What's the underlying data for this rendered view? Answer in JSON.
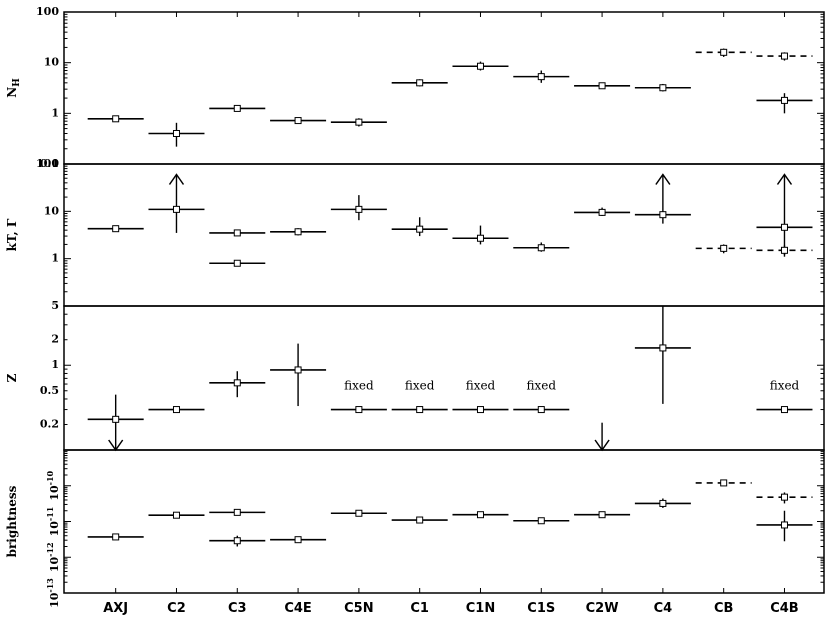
{
  "chart_data": {
    "type": "scatter",
    "categories": [
      "AXJ",
      "C2",
      "C3",
      "C4E",
      "C5N",
      "C1",
      "C1N",
      "C1S",
      "C2W",
      "C4",
      "CB",
      "C4B"
    ],
    "panels": [
      {
        "id": "nh",
        "ylabel": "N_H",
        "ylabel_main": "N",
        "ylabel_sub": "H",
        "scale": "log",
        "ylim": [
          0.1,
          100
        ],
        "ticks": [
          {
            "v": 0.1,
            "label": "0.1"
          },
          {
            "v": 1,
            "label": "1"
          },
          {
            "v": 10,
            "label": "10"
          },
          {
            "v": 100,
            "label": "100"
          }
        ],
        "series": [
          {
            "style": "solid",
            "points": [
              {
                "cat": "AXJ",
                "y": 0.78,
                "lo": 0.72,
                "hi": 0.85
              },
              {
                "cat": "C2",
                "y": 0.4,
                "lo": 0.22,
                "hi": 0.65
              },
              {
                "cat": "C3",
                "y": 1.25,
                "lo": 1.1,
                "hi": 1.4
              },
              {
                "cat": "C4E",
                "y": 0.72,
                "lo": 0.64,
                "hi": 0.8
              },
              {
                "cat": "C5N",
                "y": 0.67,
                "lo": 0.55,
                "hi": 0.8
              },
              {
                "cat": "C1",
                "y": 4.0,
                "lo": 3.4,
                "hi": 4.7
              },
              {
                "cat": "C1N",
                "y": 8.5,
                "lo": 7.0,
                "hi": 10.5
              },
              {
                "cat": "C1S",
                "y": 5.3,
                "lo": 4.0,
                "hi": 7.0
              },
              {
                "cat": "C2W",
                "y": 3.5,
                "lo": 3.1,
                "hi": 3.9
              },
              {
                "cat": "C4",
                "y": 3.2,
                "lo": 2.7,
                "hi": 3.8
              },
              {
                "cat": "C4B",
                "y": 1.8,
                "lo": 1.0,
                "hi": 2.5
              }
            ]
          },
          {
            "style": "dashed",
            "points": [
              {
                "cat": "CB",
                "y": 16,
                "lo": 13,
                "hi": 19
              },
              {
                "cat": "C4B",
                "y": 13.5,
                "lo": 11,
                "hi": 16
              }
            ]
          }
        ]
      },
      {
        "id": "kt",
        "ylabel": "kT, Γ",
        "scale": "log",
        "ylim": [
          0.1,
          100
        ],
        "ticks": [
          {
            "v": 1,
            "label": "1"
          },
          {
            "v": 10,
            "label": "10"
          },
          {
            "v": 100,
            "label": "100"
          }
        ],
        "series": [
          {
            "style": "solid",
            "points": [
              {
                "cat": "AXJ",
                "y": 4.3,
                "lo": 3.9,
                "hi": 4.8
              },
              {
                "cat": "C2",
                "y": 11,
                "lo": 3.5,
                "hi": 60,
                "arrow": "up"
              },
              {
                "cat": "C3",
                "y": 3.5,
                "lo": 3.2,
                "hi": 3.8
              },
              {
                "cat": "C3",
                "y": 0.8,
                "lo": 0.74,
                "hi": 0.86
              },
              {
                "cat": "C4E",
                "y": 3.7,
                "lo": 3.1,
                "hi": 4.4
              },
              {
                "cat": "C5N",
                "y": 11,
                "lo": 6.5,
                "hi": 22
              },
              {
                "cat": "C1",
                "y": 4.2,
                "lo": 3.0,
                "hi": 7.5
              },
              {
                "cat": "C1N",
                "y": 2.7,
                "lo": 2.0,
                "hi": 5.0
              },
              {
                "cat": "C1S",
                "y": 1.7,
                "lo": 1.4,
                "hi": 2.2
              },
              {
                "cat": "C2W",
                "y": 9.5,
                "lo": 8.0,
                "hi": 12
              },
              {
                "cat": "C4",
                "y": 8.5,
                "lo": 5.5,
                "hi": 60,
                "arrow": "up"
              },
              {
                "cat": "C4B",
                "y": 4.6,
                "lo": 1.1,
                "hi": 60,
                "arrow": "up"
              }
            ]
          },
          {
            "style": "dashed",
            "points": [
              {
                "cat": "CB",
                "y": 1.65,
                "lo": 1.3,
                "hi": 2.0
              },
              {
                "cat": "C4B",
                "y": 1.5,
                "lo": 1.2,
                "hi": 1.9
              }
            ]
          }
        ]
      },
      {
        "id": "z",
        "ylabel": "Z",
        "scale": "log",
        "ylim": [
          0.1,
          5
        ],
        "ticks": [
          {
            "v": 0.2,
            "label": "0.2"
          },
          {
            "v": 0.5,
            "label": "0.5"
          },
          {
            "v": 1,
            "label": "1"
          },
          {
            "v": 2,
            "label": "2"
          },
          {
            "v": 5,
            "label": "5"
          }
        ],
        "annotations": [
          {
            "cat": "C5N",
            "text": "fixed"
          },
          {
            "cat": "C1",
            "text": "fixed"
          },
          {
            "cat": "C1N",
            "text": "fixed"
          },
          {
            "cat": "C1S",
            "text": "fixed"
          },
          {
            "cat": "C4B",
            "text": "fixed"
          }
        ],
        "series": [
          {
            "style": "solid",
            "points": [
              {
                "cat": "AXJ",
                "y": 0.23,
                "lo": 0.1,
                "hi": 0.45,
                "arrow": "down"
              },
              {
                "cat": "C2",
                "y": 0.3
              },
              {
                "cat": "C3",
                "y": 0.62,
                "lo": 0.42,
                "hi": 0.85
              },
              {
                "cat": "C4E",
                "y": 0.88,
                "lo": 0.33,
                "hi": 1.8
              },
              {
                "cat": "C5N",
                "y": 0.3
              },
              {
                "cat": "C1",
                "y": 0.3
              },
              {
                "cat": "C1N",
                "y": 0.3
              },
              {
                "cat": "C1S",
                "y": 0.3
              },
              {
                "cat": "C2W",
                "lo": 0.1,
                "hi": 0.21,
                "arrow": "down",
                "no_marker": true
              },
              {
                "cat": "C4",
                "y": 1.6,
                "lo": 0.35,
                "hi": 5.0
              },
              {
                "cat": "C4B",
                "y": 0.3
              }
            ]
          }
        ]
      },
      {
        "id": "bright",
        "ylabel": "brightness",
        "scale": "log",
        "ylim": [
          1e-13,
          1e-09
        ],
        "ticks": [
          {
            "v": 1e-13,
            "base": "10",
            "exp": "-13"
          },
          {
            "v": 1e-12,
            "base": "10",
            "exp": "-12"
          },
          {
            "v": 1e-11,
            "base": "10",
            "exp": "-11"
          },
          {
            "v": 1e-10,
            "base": "10",
            "exp": "-10"
          }
        ],
        "series": [
          {
            "style": "solid",
            "points": [
              {
                "cat": "AXJ",
                "y": 3.7e-12,
                "lo": 3.4e-12,
                "hi": 4e-12
              },
              {
                "cat": "C2",
                "y": 1.5e-11,
                "lo": 1.35e-11,
                "hi": 1.65e-11
              },
              {
                "cat": "C3",
                "y": 1.8e-11,
                "lo": 1.6e-11,
                "hi": 2e-11
              },
              {
                "cat": "C3",
                "y": 2.9e-12,
                "lo": 2e-12,
                "hi": 4e-12
              },
              {
                "cat": "C4E",
                "y": 3.1e-12,
                "lo": 2.7e-12,
                "hi": 3.6e-12
              },
              {
                "cat": "C5N",
                "y": 1.7e-11,
                "lo": 1.55e-11,
                "hi": 1.85e-11
              },
              {
                "cat": "C1",
                "y": 1.1e-11,
                "lo": 9e-12,
                "hi": 1.35e-11
              },
              {
                "cat": "C1N",
                "y": 1.55e-11,
                "lo": 1.4e-11,
                "hi": 1.7e-11
              },
              {
                "cat": "C1S",
                "y": 1.05e-11,
                "lo": 9.2e-12,
                "hi": 1.2e-11
              },
              {
                "cat": "C2W",
                "y": 1.55e-11,
                "lo": 1.4e-11,
                "hi": 1.7e-11
              },
              {
                "cat": "C4",
                "y": 3.2e-11,
                "lo": 2.4e-11,
                "hi": 4.4e-11
              },
              {
                "cat": "C4B",
                "y": 8e-12,
                "lo": 2.8e-12,
                "hi": 2e-11
              }
            ]
          },
          {
            "style": "dashed",
            "points": [
              {
                "cat": "CB",
                "y": 1.2e-10,
                "lo": 1e-10,
                "hi": 1.45e-10
              },
              {
                "cat": "C4B",
                "y": 4.8e-11,
                "lo": 3.2e-11,
                "hi": 6.5e-11
              }
            ]
          }
        ]
      }
    ]
  }
}
